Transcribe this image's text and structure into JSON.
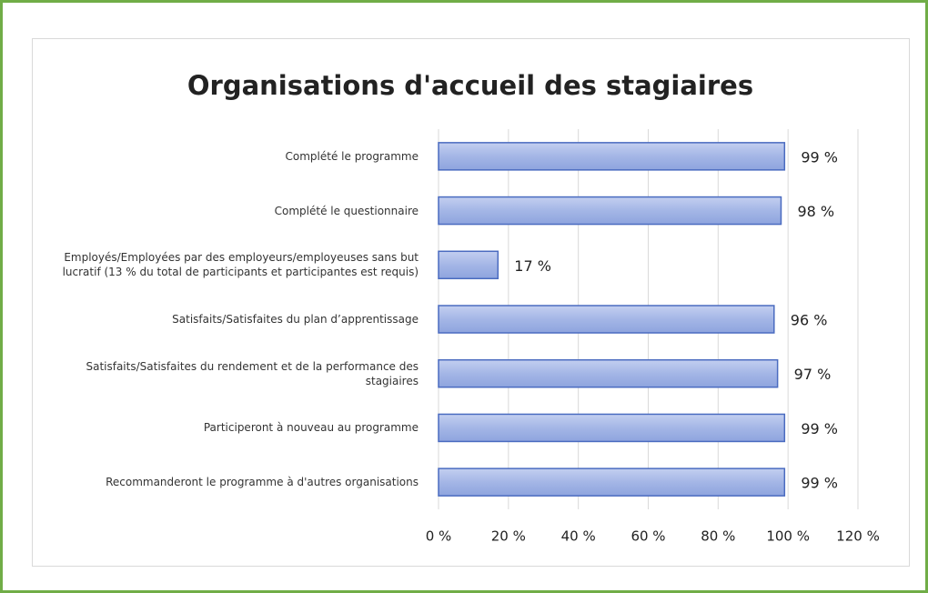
{
  "chart_data": {
    "type": "bar",
    "orientation": "horizontal",
    "title": "Organisations d'accueil des stagiaires",
    "categories": [
      "Complété le programme",
      "Complété le questionnaire",
      "Employés/Employées par des employeurs/employeuses sans but lucratif (13 % du total de participants et participantes est requis)",
      "Satisfaits/Satisfaites du plan d’apprentissage",
      "Satisfaits/Satisfaites du rendement et de la performance des stagiaires",
      "Participeront à nouveau au programme",
      "Recommanderont le programme à d'autres organisations"
    ],
    "values": [
      99,
      98,
      17,
      96,
      97,
      99,
      99
    ],
    "value_labels": [
      "99 %",
      "98 %",
      "17 %",
      "96 %",
      "97 %",
      "99 %",
      "99 %"
    ],
    "color": "#a4b6e6",
    "xlim": [
      0,
      120
    ],
    "xticks": [
      {
        "value": 0,
        "label": "0 %"
      },
      {
        "value": 20,
        "label": "20 %"
      },
      {
        "value": 40,
        "label": "40 %"
      },
      {
        "value": 60,
        "label": "60 %"
      },
      {
        "value": 80,
        "label": "80 %"
      },
      {
        "value": 100,
        "label": "100 %"
      },
      {
        "value": 120,
        "label": "120 %"
      }
    ],
    "grid": true
  }
}
